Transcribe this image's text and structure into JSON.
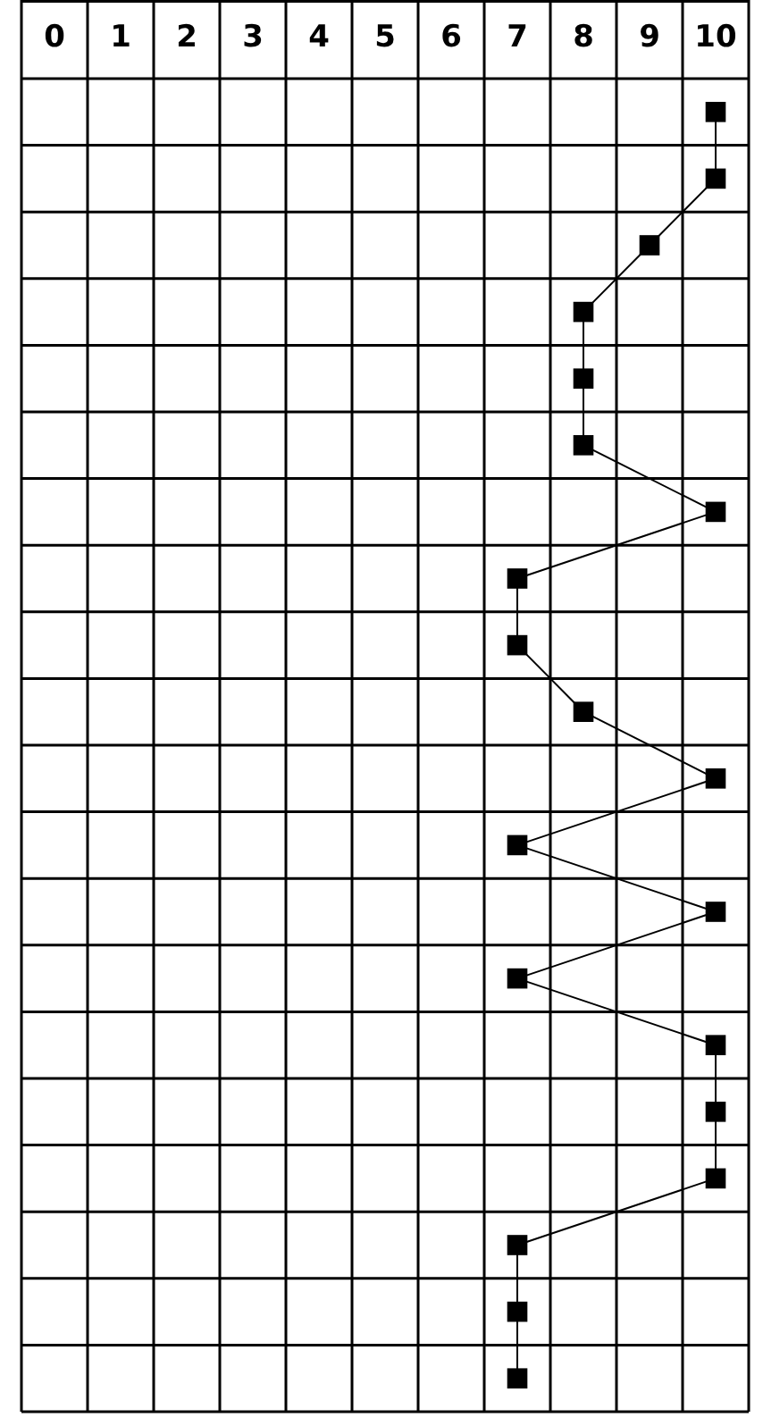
{
  "chart_data": {
    "type": "line",
    "orientation": "horizontal",
    "categories": [
      null,
      null,
      null,
      null,
      null,
      null,
      null,
      null,
      null,
      null,
      null,
      null,
      null,
      null,
      null,
      null,
      null,
      null,
      null,
      null
    ],
    "values": [
      10,
      10,
      9,
      8,
      8,
      8,
      10,
      7,
      7,
      8,
      10,
      7,
      10,
      7,
      10,
      10,
      10,
      7,
      7,
      7
    ],
    "color": "#000000",
    "marker": "square",
    "line_style": "solid",
    "grid": true,
    "tick_labels": "x",
    "xlim": [
      -0.5,
      10.5
    ],
    "xticks": [
      0,
      1,
      2,
      3,
      4,
      5,
      6,
      7,
      8,
      9,
      10
    ]
  }
}
